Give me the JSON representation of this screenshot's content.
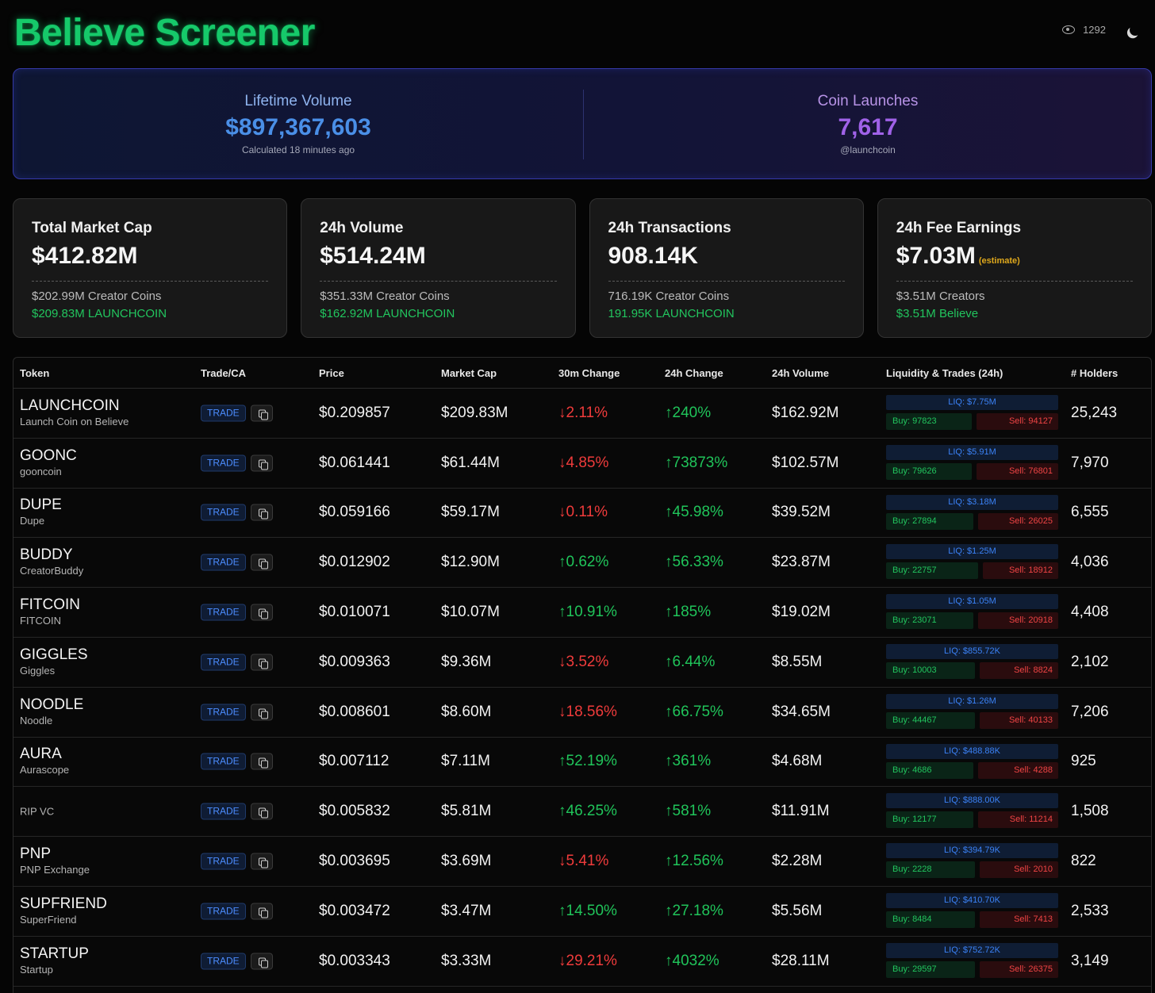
{
  "header": {
    "title": "Believe Screener",
    "views": "1292"
  },
  "hero": {
    "lifetime": {
      "label": "Lifetime Volume",
      "value": "$897,367,603",
      "sub": "Calculated 18 minutes ago",
      "color": "#4a8fe7"
    },
    "launches": {
      "label": "Coin Launches",
      "value": "7,617",
      "sub": "@launchcoin",
      "color": "#a062e8"
    }
  },
  "stats": [
    {
      "title": "Total Market Cap",
      "value": "$412.82M",
      "estimate": "",
      "line_a": "$202.99M Creator Coins",
      "line_b": "$209.83M LAUNCHCOIN"
    },
    {
      "title": "24h Volume",
      "value": "$514.24M",
      "estimate": "",
      "line_a": "$351.33M Creator Coins",
      "line_b": "$162.92M LAUNCHCOIN"
    },
    {
      "title": "24h Transactions",
      "value": "908.14K",
      "estimate": "",
      "line_a": "716.19K Creator Coins",
      "line_b": "191.95K LAUNCHCOIN"
    },
    {
      "title": "24h Fee Earnings",
      "value": "$7.03M",
      "estimate": "(estimate)",
      "line_a": "$3.51M Creators",
      "line_b": "$3.51M Believe"
    }
  ],
  "table": {
    "headers": {
      "token": "Token",
      "trade": "Trade/CA",
      "price": "Price",
      "mcap": "Market Cap",
      "c30": "30m Change",
      "c24": "24h Change",
      "vol": "24h Volume",
      "liq": "Liquidity & Trades (24h)",
      "holders": "# Holders"
    },
    "trade_label": "TRADE",
    "rows": [
      {
        "symbol": "LAUNCHCOIN",
        "name": "Launch Coin on Believe",
        "price": "$0.209857",
        "mcap": "$209.83M",
        "c30": "↓2.11%",
        "c30_dir": "down",
        "c24": "↑240%",
        "c24_dir": "up",
        "vol": "$162.92M",
        "liq": "LIQ: $7.75M",
        "buy": "Buy: 97823",
        "sell": "Sell: 94127",
        "buy_share": 0.51,
        "holders": "25,243"
      },
      {
        "symbol": "GOONC",
        "name": "gooncoin",
        "price": "$0.061441",
        "mcap": "$61.44M",
        "c30": "↓4.85%",
        "c30_dir": "down",
        "c24": "↑73873%",
        "c24_dir": "up",
        "vol": "$102.57M",
        "liq": "LIQ: $5.91M",
        "buy": "Buy: 79626",
        "sell": "Sell: 76801",
        "buy_share": 0.51,
        "holders": "7,970"
      },
      {
        "symbol": "DUPE",
        "name": "Dupe",
        "price": "$0.059166",
        "mcap": "$59.17M",
        "c30": "↓0.11%",
        "c30_dir": "down",
        "c24": "↑45.98%",
        "c24_dir": "up",
        "vol": "$39.52M",
        "liq": "LIQ: $3.18M",
        "buy": "Buy: 27894",
        "sell": "Sell: 26025",
        "buy_share": 0.52,
        "holders": "6,555"
      },
      {
        "symbol": "BUDDY",
        "name": "CreatorBuddy",
        "price": "$0.012902",
        "mcap": "$12.90M",
        "c30": "↑0.62%",
        "c30_dir": "up",
        "c24": "↑56.33%",
        "c24_dir": "up",
        "vol": "$23.87M",
        "liq": "LIQ: $1.25M",
        "buy": "Buy: 22757",
        "sell": "Sell: 18912",
        "buy_share": 0.55,
        "holders": "4,036"
      },
      {
        "symbol": "FITCOIN",
        "name": "FITCOIN",
        "price": "$0.010071",
        "mcap": "$10.07M",
        "c30": "↑10.91%",
        "c30_dir": "up",
        "c24": "↑185%",
        "c24_dir": "up",
        "vol": "$19.02M",
        "liq": "LIQ: $1.05M",
        "buy": "Buy: 23071",
        "sell": "Sell: 20918",
        "buy_share": 0.52,
        "holders": "4,408"
      },
      {
        "symbol": "GIGGLES",
        "name": "Giggles",
        "price": "$0.009363",
        "mcap": "$9.36M",
        "c30": "↓3.52%",
        "c30_dir": "down",
        "c24": "↑6.44%",
        "c24_dir": "up",
        "vol": "$8.55M",
        "liq": "LIQ: $855.72K",
        "buy": "Buy: 10003",
        "sell": "Sell: 8824",
        "buy_share": 0.53,
        "holders": "2,102"
      },
      {
        "symbol": "NOODLE",
        "name": "Noodle",
        "price": "$0.008601",
        "mcap": "$8.60M",
        "c30": "↓18.56%",
        "c30_dir": "down",
        "c24": "↑66.75%",
        "c24_dir": "up",
        "vol": "$34.65M",
        "liq": "LIQ: $1.26M",
        "buy": "Buy: 44467",
        "sell": "Sell: 40133",
        "buy_share": 0.53,
        "holders": "7,206"
      },
      {
        "symbol": "AURA",
        "name": "Aurascope",
        "price": "$0.007112",
        "mcap": "$7.11M",
        "c30": "↑52.19%",
        "c30_dir": "up",
        "c24": "↑361%",
        "c24_dir": "up",
        "vol": "$4.68M",
        "liq": "LIQ: $488.88K",
        "buy": "Buy: 4686",
        "sell": "Sell: 4288",
        "buy_share": 0.52,
        "holders": "925"
      },
      {
        "symbol": "",
        "name": "RIP VC",
        "price": "$0.005832",
        "mcap": "$5.81M",
        "c30": "↑46.25%",
        "c30_dir": "up",
        "c24": "↑581%",
        "c24_dir": "up",
        "vol": "$11.91M",
        "liq": "LIQ: $888.00K",
        "buy": "Buy: 12177",
        "sell": "Sell: 11214",
        "buy_share": 0.52,
        "holders": "1,508"
      },
      {
        "symbol": "PNP",
        "name": "PNP Exchange",
        "price": "$0.003695",
        "mcap": "$3.69M",
        "c30": "↓5.41%",
        "c30_dir": "down",
        "c24": "↑12.56%",
        "c24_dir": "up",
        "vol": "$2.28M",
        "liq": "LIQ: $394.79K",
        "buy": "Buy: 2228",
        "sell": "Sell: 2010",
        "buy_share": 0.53,
        "holders": "822"
      },
      {
        "symbol": "SUPFRIEND",
        "name": "SuperFriend",
        "price": "$0.003472",
        "mcap": "$3.47M",
        "c30": "↑14.50%",
        "c30_dir": "up",
        "c24": "↑27.18%",
        "c24_dir": "up",
        "vol": "$5.56M",
        "liq": "LIQ: $410.70K",
        "buy": "Buy: 8484",
        "sell": "Sell: 7413",
        "buy_share": 0.53,
        "holders": "2,533"
      },
      {
        "symbol": "STARTUP",
        "name": "Startup",
        "price": "$0.003343",
        "mcap": "$3.33M",
        "c30": "↓29.21%",
        "c30_dir": "down",
        "c24": "↑4032%",
        "c24_dir": "up",
        "vol": "$28.11M",
        "liq": "LIQ: $752.72K",
        "buy": "Buy: 29597",
        "sell": "Sell: 26375",
        "buy_share": 0.53,
        "holders": "3,149"
      }
    ]
  }
}
